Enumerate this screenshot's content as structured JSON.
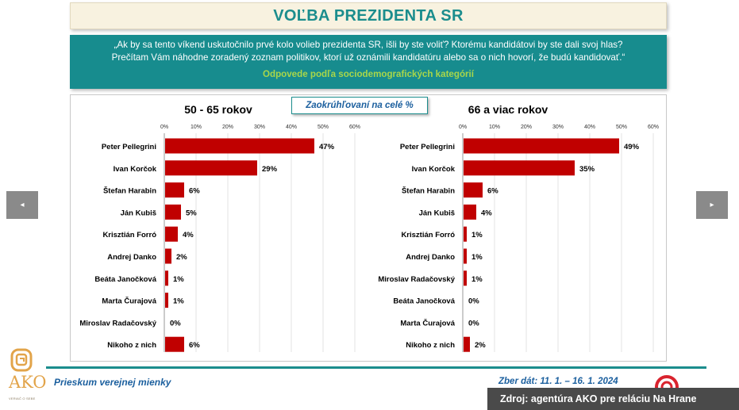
{
  "header": {
    "title": "VOĽBA PREZIDENTA SR"
  },
  "question": {
    "line1": "„Ak by sa tento víkend uskutočnilo prvé kolo volieb prezidenta SR, išli by ste voliť? Ktorému kandidátovi by ste dali svoj hlas?",
    "line2": "Prečítam Vám náhodne zoradený zoznam politikov, ktorí už oznámili kandidatúru alebo sa o nich hovorí, že budú kandidovať.“",
    "subtitle": "Odpovede podľa sociodemografických kategórií"
  },
  "note": "Zaokrúhľovaní na celé %",
  "chart_data": [
    {
      "type": "bar",
      "title": "50 - 65 rokov",
      "orientation": "horizontal",
      "xlim": [
        0,
        60
      ],
      "ticks": [
        "0%",
        "10%",
        "20%",
        "30%",
        "40%",
        "50%",
        "60%"
      ],
      "categories": [
        "Peter Pellegrini",
        "Ivan Korčok",
        "Štefan Harabin",
        "Ján Kubiš",
        "Krisztián Forró",
        "Andrej Danko",
        "Beáta Janočková",
        "Marta Čurajová",
        "Miroslav Radačovský",
        "Nikoho z nich"
      ],
      "values": [
        47,
        29,
        6,
        5,
        4,
        2,
        1,
        1,
        0,
        6
      ],
      "labels": [
        "47%",
        "29%",
        "6%",
        "5%",
        "4%",
        "2%",
        "1%",
        "1%",
        "0%",
        "6%"
      ],
      "color": "#c00000",
      "grid": true
    },
    {
      "type": "bar",
      "title": "66 a viac rokov",
      "orientation": "horizontal",
      "xlim": [
        0,
        60
      ],
      "ticks": [
        "0%",
        "10%",
        "20%",
        "30%",
        "40%",
        "50%",
        "60%"
      ],
      "categories": [
        "Peter Pellegrini",
        "Ivan Korčok",
        "Štefan Harabin",
        "Ján Kubiš",
        "Krisztián Forró",
        "Andrej Danko",
        "Miroslav Radačovský",
        "Beáta Janočková",
        "Marta Čurajová",
        "Nikoho z nich"
      ],
      "values": [
        49,
        35,
        6,
        4,
        1,
        1,
        1,
        0,
        0,
        2
      ],
      "labels": [
        "49%",
        "35%",
        "6%",
        "4%",
        "1%",
        "1%",
        "1%",
        "0%",
        "0%",
        "2%"
      ],
      "color": "#c00000",
      "grid": true
    }
  ],
  "footer": {
    "left": "Prieskum verejnej mienky",
    "right": "Zber dát: 11. 1. – 16. 1. 2024"
  },
  "logo": {
    "text": "AKO",
    "tagline": "VERIAČ O SEBE"
  },
  "source": "Zdroj: agentúra AKO pre reláciu Na Hrane",
  "nav": {
    "prev": "◂",
    "next": "▸"
  },
  "colors": {
    "teal": "#1b8d8d",
    "bar": "#c00000",
    "accent_green": "#a8d64a",
    "navy": "#1b5f9e"
  }
}
